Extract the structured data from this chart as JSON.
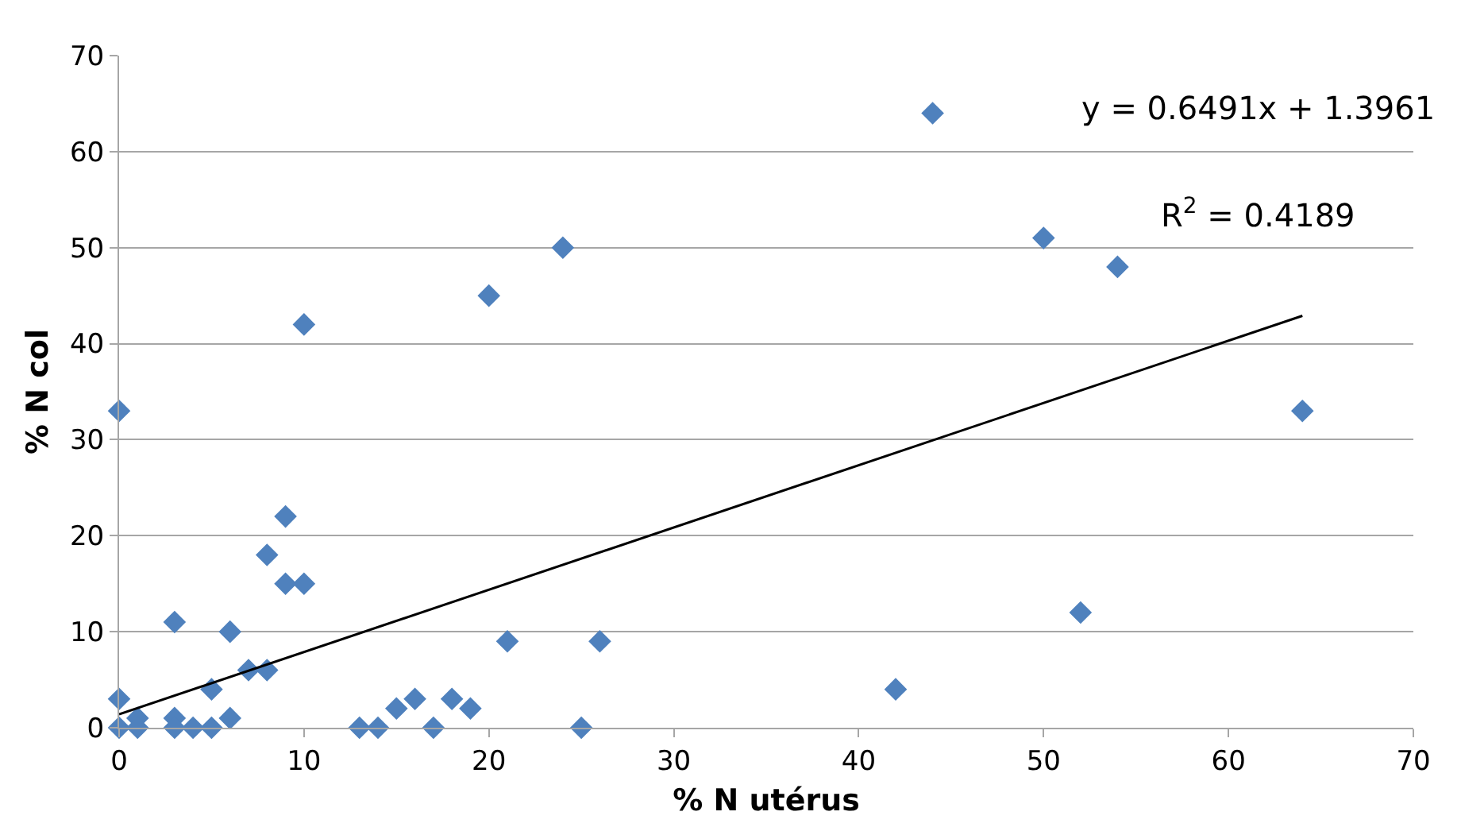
{
  "chart_data": {
    "type": "scatter",
    "xlabel": "% N utérus",
    "ylabel": "% N col",
    "xlim": [
      0,
      70
    ],
    "ylim": [
      0,
      70
    ],
    "xticks": [
      0,
      10,
      20,
      30,
      40,
      50,
      60,
      70
    ],
    "yticks": [
      0,
      10,
      20,
      30,
      40,
      50,
      60,
      70
    ],
    "grid": "y",
    "marker": "diamond",
    "series": [
      {
        "color": "#4f81bd",
        "x": [
          0,
          0,
          0,
          1,
          1,
          3,
          3,
          3,
          4,
          5,
          5,
          6,
          6,
          7,
          8,
          8,
          9,
          9,
          10,
          10,
          13,
          14,
          15,
          16,
          17,
          18,
          19,
          20,
          21,
          24,
          25,
          26,
          42,
          44,
          50,
          52,
          54,
          64
        ],
        "values": [
          33,
          3,
          0,
          1,
          0,
          11,
          1,
          0,
          0,
          4,
          0,
          10,
          1,
          6,
          6,
          18,
          22,
          15,
          15,
          42,
          0,
          0,
          2,
          3,
          0,
          3,
          2,
          45,
          9,
          50,
          0,
          9,
          4,
          64,
          51,
          12,
          48,
          33
        ]
      },
      {
        "type": "line",
        "marker": "none",
        "color": "#000000",
        "x": [
          0,
          64
        ],
        "values": [
          1.4,
          42.9
        ]
      }
    ],
    "annotations": [
      "y = 0.6491x + 1.3961",
      "R$^{2}$ = 0.4189"
    ]
  }
}
